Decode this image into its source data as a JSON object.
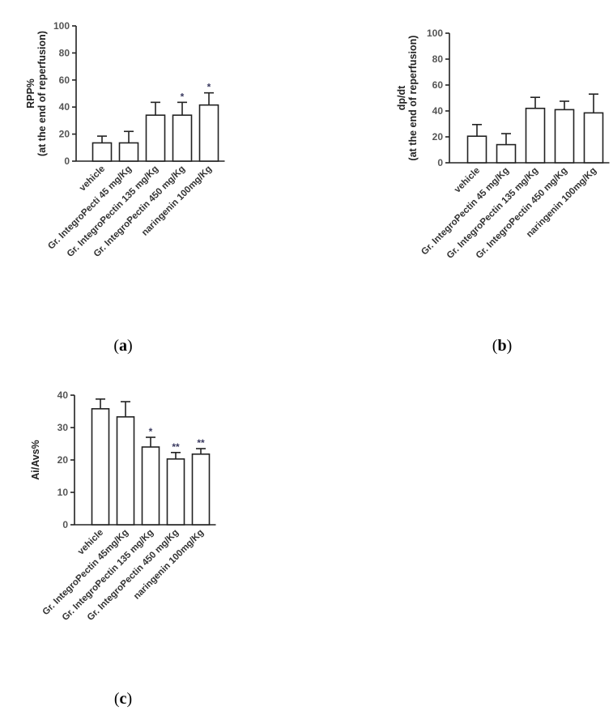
{
  "chart_data": [
    {
      "type": "bar",
      "panel_label": "(a)",
      "ylabel_lines": [
        "RPP%",
        "(at the end of reperfusion)"
      ],
      "ylim": [
        0,
        100
      ],
      "yticks": [
        0,
        20,
        40,
        60,
        80,
        100
      ],
      "categories": [
        "vehicle",
        "Gr. IntegroPecti 45 mg/Kg",
        "Gr. IntegroPectin 135 mg/Kg",
        "Gr. IntegroPectin 450 mg/Kg",
        "naringenin 100mg/Kg"
      ],
      "values": [
        13.5,
        13.5,
        34,
        34,
        41.5
      ],
      "errors": [
        5,
        8.5,
        9.5,
        9.5,
        9
      ],
      "significance": [
        "",
        "",
        "",
        "*",
        "*"
      ]
    },
    {
      "type": "bar",
      "panel_label": "(b)",
      "ylabel_lines": [
        "dp/dt",
        "(at the end of reperfusion)"
      ],
      "ylim": [
        0,
        100
      ],
      "yticks": [
        0,
        20,
        40,
        60,
        80,
        100
      ],
      "categories": [
        "vehicle",
        "Gr. IntegroPectin 45 mg/Kg",
        "Gr. IntegroPectin 135 mg/Kg",
        "Gr. IntegroPectin 450 mg/Kg",
        "naringenin 100mg/Kg"
      ],
      "values": [
        20.5,
        14,
        42,
        41,
        38.5
      ],
      "errors": [
        9,
        8.5,
        8.5,
        6.5,
        14.5
      ],
      "significance": [
        "",
        "",
        "",
        "",
        ""
      ]
    },
    {
      "type": "bar",
      "panel_label": "(c)",
      "ylabel_lines": [
        "Ai/Avs%"
      ],
      "ylim": [
        0,
        40
      ],
      "yticks": [
        0,
        10,
        20,
        30,
        40
      ],
      "categories": [
        "vehicle",
        "Gr. IntegroPectin 45mg/Kg",
        "Gr. IntegroPectin 135 mg/Kg",
        "Gr. IntegroPectin 450 mg/Kg",
        "naringenin 100mg/Kg"
      ],
      "values": [
        35.8,
        33.3,
        24,
        20.3,
        21.8
      ],
      "errors": [
        3,
        4.7,
        3,
        2,
        1.7
      ],
      "significance": [
        "",
        "",
        "*",
        "**",
        "**"
      ]
    }
  ]
}
